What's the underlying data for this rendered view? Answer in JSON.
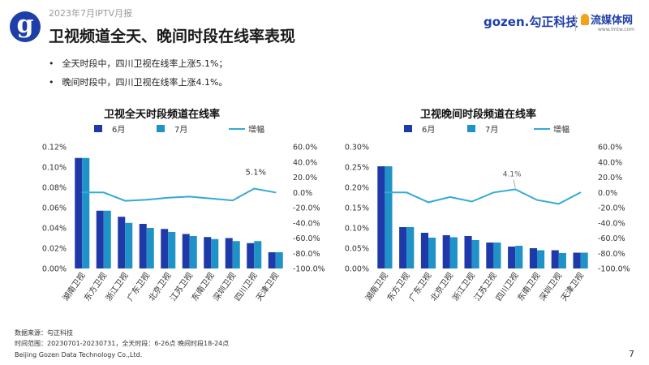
{
  "header": {
    "report_label": "2023年7月IPTV月报",
    "title": "卫视频道全天、晚间时段在线率表现",
    "logo_glyph": "g",
    "gozen_logo": "gozen.勾正科技",
    "lmt_logo": "流媒体网",
    "lmt_url": "www.lmtw.com"
  },
  "bullets": [
    "全天时段中，四川卫视在线率上涨5.1%；",
    "晚间时段中，四川卫视在线率上涨4.1%。"
  ],
  "colors": {
    "june": "#1f3aa8",
    "july": "#1f92c8",
    "change": "#34a9d6",
    "brand": "#1f3fa8"
  },
  "chart_data": [
    {
      "type": "bar",
      "title": "卫视全天时段频道在线率",
      "categories": [
        "湖南卫视",
        "东方卫视",
        "浙江卫视",
        "广东卫视",
        "北京卫视",
        "江苏卫视",
        "东南卫视",
        "深圳卫视",
        "四川卫视",
        "天津卫视"
      ],
      "series": [
        {
          "name": "6月",
          "values": [
            0.109,
            0.057,
            0.051,
            0.044,
            0.039,
            0.034,
            0.031,
            0.03,
            0.025,
            0.016
          ]
        },
        {
          "name": "7月",
          "values": [
            0.109,
            0.057,
            0.045,
            0.04,
            0.036,
            0.032,
            0.029,
            0.027,
            0.027,
            0.016
          ]
        },
        {
          "name": "增幅",
          "type": "line",
          "axis": "right",
          "values": [
            0.0,
            0.0,
            -11.0,
            -9.5,
            -7.0,
            -5.5,
            -8.0,
            -10.5,
            5.1,
            0.0
          ]
        }
      ],
      "ylim_left": [
        0,
        0.12
      ],
      "ylim_right": [
        -100,
        60
      ],
      "left_ticks": [
        "0.00%",
        "0.02%",
        "0.04%",
        "0.06%",
        "0.08%",
        "0.10%",
        "0.12%"
      ],
      "right_ticks": [
        "-100.0%",
        "-80.0%",
        "-60.0%",
        "-40.0%",
        "-20.0%",
        "0.0%",
        "20.0%",
        "40.0%",
        "60.0%"
      ],
      "annotations": [
        {
          "index": 8,
          "text": "5.1%"
        }
      ]
    },
    {
      "type": "bar",
      "title": "卫视晚间时段频道在线率",
      "categories": [
        "湖南卫视",
        "东方卫视",
        "广东卫视",
        "北京卫视",
        "浙江卫视",
        "江苏卫视",
        "四川卫视",
        "东南卫视",
        "深圳卫视",
        "天津卫视"
      ],
      "series": [
        {
          "name": "6月",
          "values": [
            0.252,
            0.102,
            0.088,
            0.082,
            0.08,
            0.064,
            0.054,
            0.05,
            0.045,
            0.039
          ]
        },
        {
          "name": "7月",
          "values": [
            0.252,
            0.102,
            0.076,
            0.077,
            0.07,
            0.064,
            0.056,
            0.045,
            0.038,
            0.039
          ]
        },
        {
          "name": "增幅",
          "type": "line",
          "axis": "right",
          "values": [
            0.0,
            0.0,
            -13.0,
            -6.0,
            -12.0,
            0.0,
            4.1,
            -10.0,
            -15.0,
            0.0
          ]
        }
      ],
      "ylim_left": [
        0,
        0.3
      ],
      "ylim_right": [
        -100,
        60
      ],
      "left_ticks": [
        "0.00%",
        "0.05%",
        "0.10%",
        "0.15%",
        "0.20%",
        "0.25%",
        "0.30%"
      ],
      "right_ticks": [
        "-100.0%",
        "-80.0%",
        "-60.0%",
        "-40.0%",
        "-20.0%",
        "0.0%",
        "20.0%",
        "40.0%",
        "60.0%"
      ],
      "annotations": [
        {
          "index": 6,
          "text": "4.1%"
        }
      ]
    }
  ],
  "footer": {
    "source": "数据来源：勾正科技",
    "period": "时间范围：20230701-20230731，全天时段：6-26点  晚间时段18-24点",
    "company": "Beijing Gozen Data Technology Co.,Ltd.",
    "page_number": "7"
  }
}
